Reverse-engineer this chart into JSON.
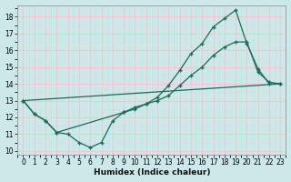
{
  "xlabel": "Humidex (Indice chaleur)",
  "xlim": [
    -0.5,
    23.5
  ],
  "ylim": [
    9.8,
    18.7
  ],
  "yticks": [
    10,
    11,
    12,
    13,
    14,
    15,
    16,
    17,
    18
  ],
  "xticks": [
    0,
    1,
    2,
    3,
    4,
    5,
    6,
    7,
    8,
    9,
    10,
    11,
    12,
    13,
    14,
    15,
    16,
    17,
    18,
    19,
    20,
    21,
    22,
    23
  ],
  "bg_color": "#cde8e8",
  "line_color": "#1a6b5a",
  "grid_major_color": "#f0c8c8",
  "grid_minor_color": "#c8e0e0",
  "line1_x": [
    0,
    1,
    2,
    3,
    4,
    5,
    6,
    7,
    8,
    9,
    10,
    11,
    12,
    13,
    14,
    15,
    16,
    17,
    18,
    19,
    20,
    21,
    22,
    23
  ],
  "line1_y": [
    13.0,
    12.2,
    11.8,
    11.1,
    11.0,
    10.5,
    10.2,
    10.5,
    11.8,
    12.3,
    12.5,
    12.8,
    13.2,
    13.9,
    14.8,
    15.8,
    16.4,
    17.4,
    17.9,
    18.4,
    16.4,
    14.9,
    14.0,
    14.0
  ],
  "line2_x": [
    0,
    1,
    2,
    3,
    9,
    10,
    11,
    12,
    13,
    14,
    15,
    16,
    17,
    18,
    19,
    20,
    21,
    22,
    23
  ],
  "line2_y": [
    13.0,
    12.2,
    11.8,
    11.1,
    12.3,
    12.6,
    12.8,
    13.0,
    13.3,
    13.9,
    14.5,
    15.0,
    15.7,
    16.2,
    16.5,
    16.5,
    14.7,
    14.1,
    14.0
  ],
  "line3_x": [
    0,
    23
  ],
  "line3_y": [
    13.0,
    14.0
  ]
}
